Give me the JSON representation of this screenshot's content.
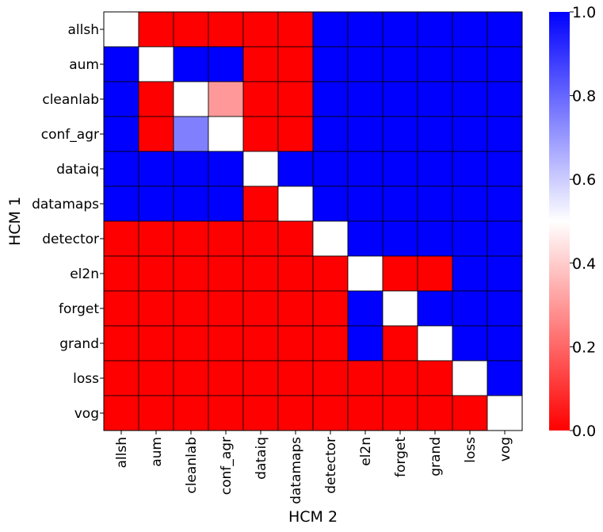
{
  "chart_data": {
    "type": "heatmap",
    "title": "",
    "xlabel": "HCM 2",
    "ylabel": "HCM 1",
    "row_labels": [
      "allsh",
      "aum",
      "cleanlab",
      "conf_agr",
      "dataiq",
      "datamaps",
      "detector",
      "el2n",
      "forget",
      "grand",
      "loss",
      "vog"
    ],
    "col_labels": [
      "allsh",
      "aum",
      "cleanlab",
      "conf_agr",
      "dataiq",
      "datamaps",
      "detector",
      "el2n",
      "forget",
      "grand",
      "loss",
      "vog"
    ],
    "values": [
      [
        0.5,
        0,
        0,
        0,
        0,
        0,
        1,
        1,
        1,
        1,
        1,
        1
      ],
      [
        1,
        0.5,
        1,
        1,
        0,
        0,
        1,
        1,
        1,
        1,
        1,
        1
      ],
      [
        1,
        0,
        0.5,
        0.3,
        0,
        0,
        1,
        1,
        1,
        1,
        1,
        1
      ],
      [
        1,
        0,
        0.75,
        0.5,
        0,
        0,
        1,
        1,
        1,
        1,
        1,
        1
      ],
      [
        1,
        1,
        1,
        1,
        0.5,
        1,
        1,
        1,
        1,
        1,
        1,
        1
      ],
      [
        1,
        1,
        1,
        1,
        0,
        0.5,
        1,
        1,
        1,
        1,
        1,
        1
      ],
      [
        0,
        0,
        0,
        0,
        0,
        0,
        0.5,
        1,
        1,
        1,
        1,
        1
      ],
      [
        0,
        0,
        0,
        0,
        0,
        0,
        0,
        0.5,
        0,
        0,
        1,
        1
      ],
      [
        0,
        0,
        0,
        0,
        0,
        0,
        0,
        1,
        0.5,
        1,
        1,
        1
      ],
      [
        0,
        0,
        0,
        0,
        0,
        0,
        0,
        1,
        0,
        0.5,
        1,
        1
      ],
      [
        0,
        0,
        0,
        0,
        0,
        0,
        0,
        0,
        0,
        0,
        0.5,
        1
      ],
      [
        0,
        0,
        0,
        0,
        0,
        0,
        0,
        0,
        0,
        0,
        0,
        0.5
      ]
    ],
    "colorbar": {
      "vmin": 0.0,
      "vmax": 1.0,
      "ticks": [
        "0.0",
        "0.2",
        "0.4",
        "0.6",
        "0.8",
        "1.0"
      ],
      "colors": {
        "low": "#ff0000",
        "mid": "#ffffff",
        "high": "#0000ff"
      }
    }
  }
}
